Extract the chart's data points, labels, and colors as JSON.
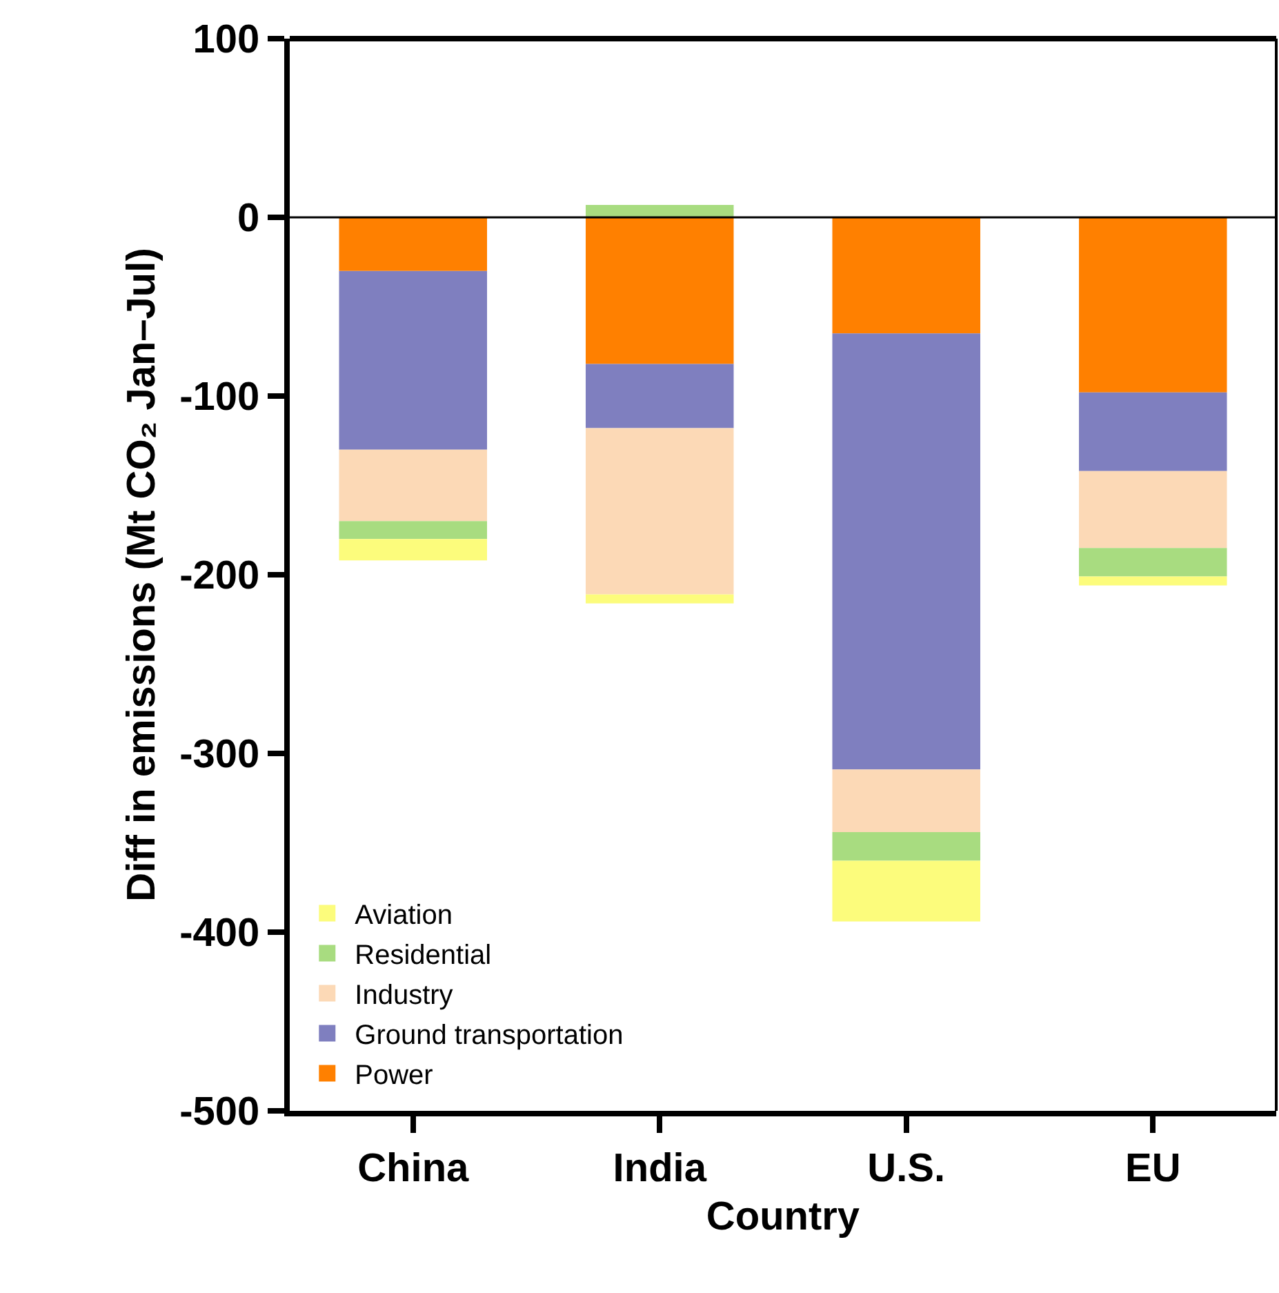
{
  "chart_data": {
    "type": "bar",
    "stacked": true,
    "xlabel": "Country",
    "ylabel": "Diff in emissions (Mt CO₂ Jan–Jul)",
    "categories": [
      "China",
      "India",
      "U.S.",
      "EU"
    ],
    "series": [
      {
        "name": "Power",
        "color": "#ff8000",
        "values": [
          -30,
          -82,
          -65,
          -98
        ]
      },
      {
        "name": "Ground transportation",
        "color": "#7f7fbf",
        "values": [
          -100,
          -36,
          -244,
          -44
        ]
      },
      {
        "name": "Industry",
        "color": "#fcd9b6",
        "values": [
          -40,
          -93,
          -35,
          -43
        ]
      },
      {
        "name": "Residential",
        "color": "#a8dc80",
        "values": [
          -10,
          7,
          -16,
          -16
        ]
      },
      {
        "name": "Aviation",
        "color": "#fcfc7c",
        "values": [
          -12,
          -5,
          -34,
          -5
        ]
      }
    ],
    "ylim": [
      -500,
      100
    ],
    "yticks": [
      -500,
      -400,
      -300,
      -200,
      -100,
      0,
      100
    ],
    "ref_lines": [
      {
        "axis": "y",
        "value": 0,
        "color": "#000000"
      }
    ],
    "legend": "bottom left"
  }
}
